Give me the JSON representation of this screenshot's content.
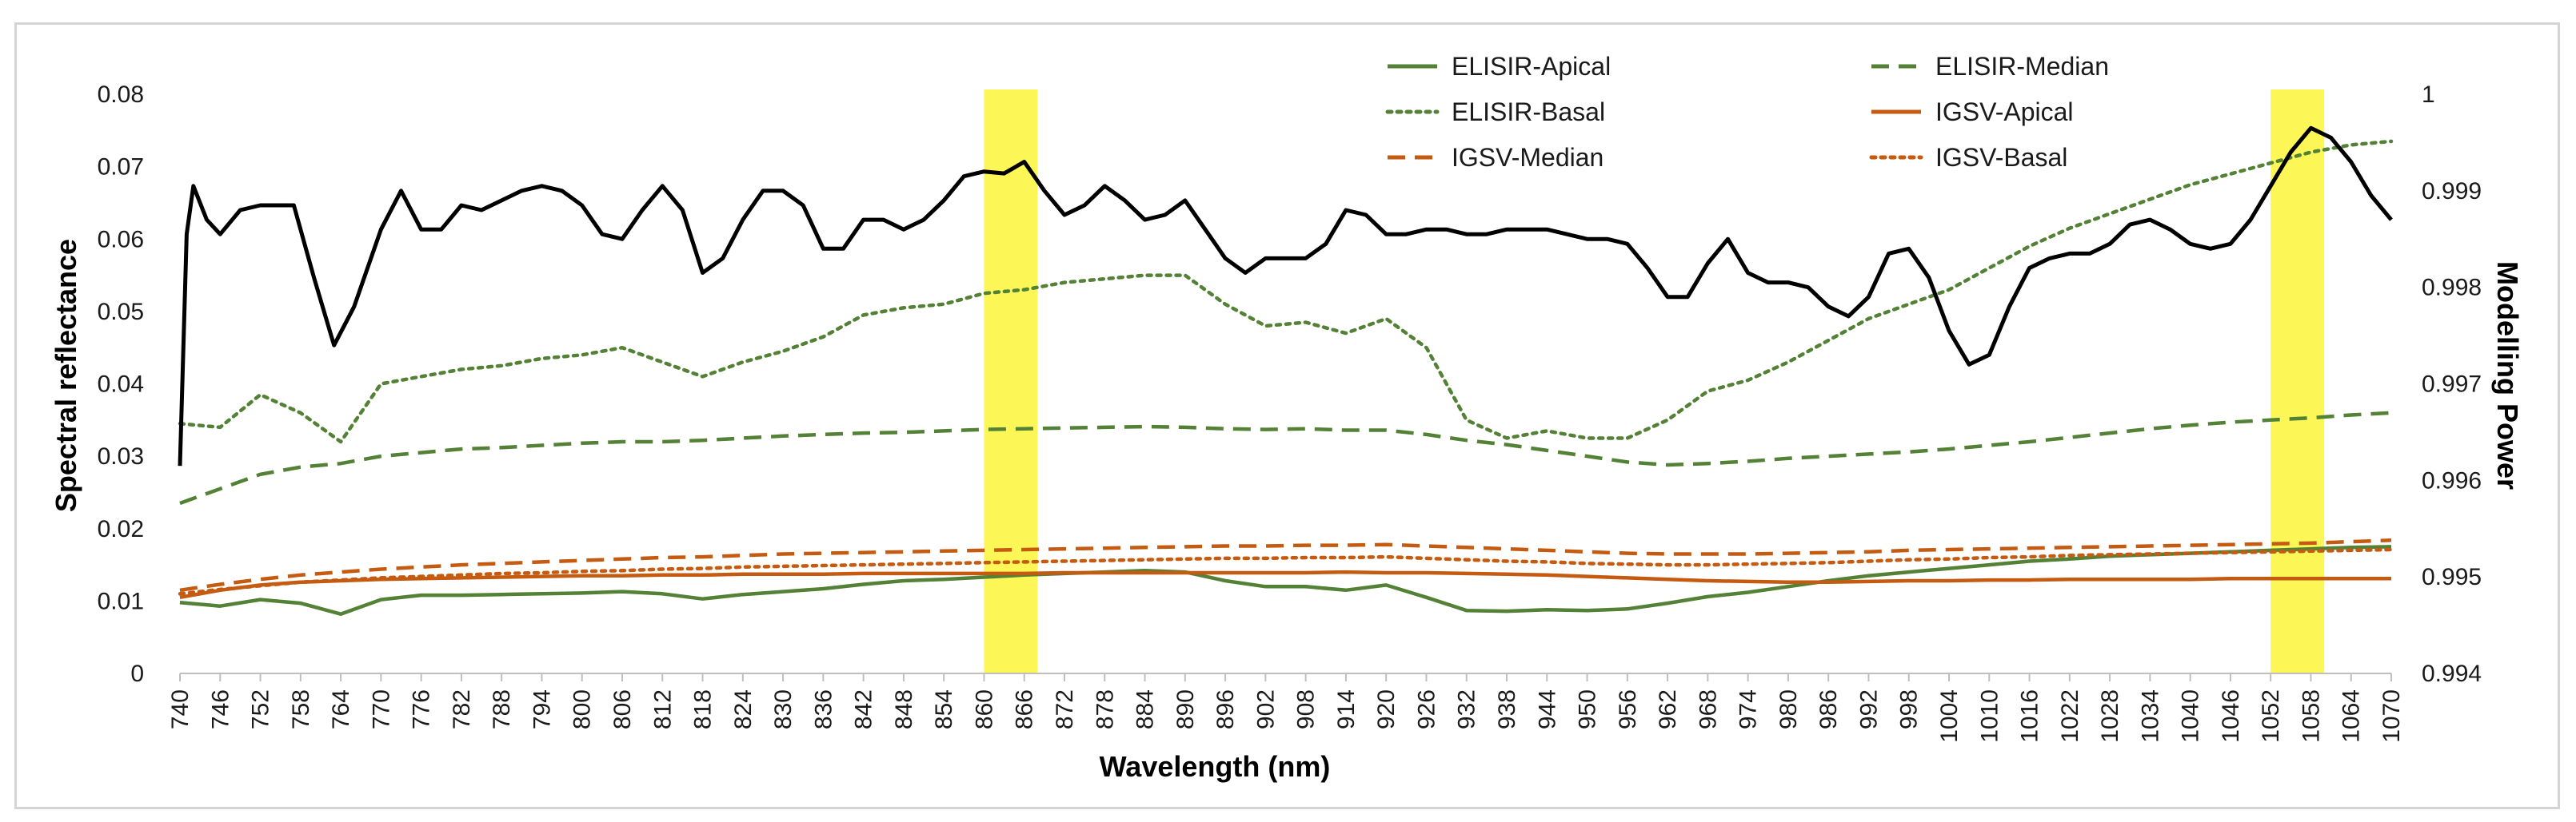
{
  "chart_data": {
    "type": "line",
    "title": "",
    "xlabel": "Wavelength (nm)",
    "ylabel": "Spectral reflectance",
    "y2label": "Modelling Power",
    "xlim": [
      740,
      1070
    ],
    "ylim": [
      0,
      0.08
    ],
    "y2lim": [
      0.994,
      1
    ],
    "x_ticks": [
      "740",
      "746",
      "752",
      "758",
      "764",
      "770",
      "776",
      "782",
      "788",
      "794",
      "800",
      "806",
      "812",
      "818",
      "824",
      "830",
      "836",
      "842",
      "848",
      "854",
      "860",
      "866",
      "872",
      "878",
      "884",
      "890",
      "896",
      "902",
      "908",
      "914",
      "920",
      "926",
      "932",
      "938",
      "944",
      "950",
      "956",
      "962",
      "968",
      "974",
      "980",
      "986",
      "992",
      "998",
      "1004",
      "1010",
      "1016",
      "1022",
      "1028",
      "1034",
      "1040",
      "1046",
      "1052",
      "1058",
      "1064",
      "1070"
    ],
    "y_ticks": [
      "0",
      "0.01",
      "0.02",
      "0.03",
      "0.04",
      "0.05",
      "0.06",
      "0.07",
      "0.08"
    ],
    "y2_ticks": [
      "0.994",
      "0.995",
      "0.996",
      "0.997",
      "0.998",
      "0.999",
      "1"
    ],
    "highlight_bands": [
      [
        860,
        868
      ],
      [
        1052,
        1060
      ]
    ],
    "highlight_color": "#fbf43a",
    "series": [
      {
        "name": "ELISIR-Apical",
        "axis": "left",
        "color": "#538135",
        "style": "solid",
        "x": [
          740,
          746,
          752,
          758,
          764,
          770,
          776,
          782,
          788,
          794,
          800,
          806,
          812,
          818,
          824,
          830,
          836,
          842,
          848,
          854,
          860,
          866,
          872,
          878,
          884,
          890,
          896,
          902,
          908,
          914,
          920,
          926,
          932,
          938,
          944,
          950,
          956,
          962,
          968,
          974,
          980,
          986,
          992,
          998,
          1004,
          1010,
          1016,
          1022,
          1028,
          1034,
          1040,
          1046,
          1052,
          1058,
          1064,
          1070
        ],
        "values": [
          0.0098,
          0.0093,
          0.0102,
          0.0097,
          0.0082,
          0.0102,
          0.0108,
          0.0108,
          0.0109,
          0.011,
          0.0111,
          0.0113,
          0.011,
          0.0103,
          0.0109,
          0.0113,
          0.0117,
          0.0123,
          0.0128,
          0.013,
          0.0133,
          0.0136,
          0.0138,
          0.014,
          0.0142,
          0.014,
          0.0128,
          0.012,
          0.012,
          0.0115,
          0.0122,
          0.0105,
          0.0087,
          0.0086,
          0.0088,
          0.0087,
          0.0089,
          0.0097,
          0.0106,
          0.0112,
          0.012,
          0.0128,
          0.0135,
          0.014,
          0.0145,
          0.015,
          0.0155,
          0.0158,
          0.0162,
          0.0164,
          0.0166,
          0.0168,
          0.017,
          0.0172,
          0.0174,
          0.0175
        ]
      },
      {
        "name": "ELISIR-Median",
        "axis": "left",
        "color": "#538135",
        "style": "dashed",
        "x": [
          740,
          746,
          752,
          758,
          764,
          770,
          776,
          782,
          788,
          794,
          800,
          806,
          812,
          818,
          824,
          830,
          836,
          842,
          848,
          854,
          860,
          866,
          872,
          878,
          884,
          890,
          896,
          902,
          908,
          914,
          920,
          926,
          932,
          938,
          944,
          950,
          956,
          962,
          968,
          974,
          980,
          986,
          992,
          998,
          1004,
          1010,
          1016,
          1022,
          1028,
          1034,
          1040,
          1046,
          1052,
          1058,
          1064,
          1070
        ],
        "values": [
          0.0235,
          0.0255,
          0.0275,
          0.0285,
          0.029,
          0.03,
          0.0305,
          0.031,
          0.0312,
          0.0315,
          0.0318,
          0.032,
          0.032,
          0.0322,
          0.0325,
          0.0328,
          0.033,
          0.0332,
          0.0333,
          0.0335,
          0.0337,
          0.0338,
          0.0339,
          0.034,
          0.0341,
          0.034,
          0.0338,
          0.0337,
          0.0338,
          0.0336,
          0.0336,
          0.033,
          0.0322,
          0.0316,
          0.0308,
          0.03,
          0.0292,
          0.0288,
          0.029,
          0.0293,
          0.0297,
          0.03,
          0.0303,
          0.0306,
          0.031,
          0.0315,
          0.032,
          0.0326,
          0.0332,
          0.0338,
          0.0343,
          0.0347,
          0.035,
          0.0353,
          0.0357,
          0.036
        ]
      },
      {
        "name": "ELISIR-Basal",
        "axis": "left",
        "color": "#538135",
        "style": "dotted",
        "x": [
          740,
          746,
          752,
          758,
          764,
          770,
          776,
          782,
          788,
          794,
          800,
          806,
          812,
          818,
          824,
          830,
          836,
          842,
          848,
          854,
          860,
          866,
          872,
          878,
          884,
          890,
          896,
          902,
          908,
          914,
          920,
          926,
          932,
          938,
          944,
          950,
          956,
          962,
          968,
          974,
          980,
          986,
          992,
          998,
          1004,
          1010,
          1016,
          1022,
          1028,
          1034,
          1040,
          1046,
          1052,
          1058,
          1064,
          1070
        ],
        "values": [
          0.0345,
          0.034,
          0.0385,
          0.036,
          0.032,
          0.04,
          0.041,
          0.042,
          0.0425,
          0.0435,
          0.044,
          0.045,
          0.043,
          0.041,
          0.043,
          0.0445,
          0.0465,
          0.0495,
          0.0505,
          0.051,
          0.0525,
          0.053,
          0.054,
          0.0545,
          0.055,
          0.055,
          0.051,
          0.048,
          0.0485,
          0.047,
          0.049,
          0.045,
          0.035,
          0.0325,
          0.0335,
          0.0325,
          0.0325,
          0.035,
          0.039,
          0.0405,
          0.043,
          0.046,
          0.049,
          0.051,
          0.053,
          0.056,
          0.059,
          0.0615,
          0.0635,
          0.0655,
          0.0675,
          0.069,
          0.0705,
          0.072,
          0.073,
          0.0735
        ]
      },
      {
        "name": "IGSV-Apical",
        "axis": "left",
        "color": "#c55a11",
        "style": "solid",
        "x": [
          740,
          746,
          752,
          758,
          764,
          770,
          776,
          782,
          788,
          794,
          800,
          806,
          812,
          818,
          824,
          830,
          836,
          842,
          848,
          854,
          860,
          866,
          872,
          878,
          884,
          890,
          896,
          902,
          908,
          914,
          920,
          926,
          932,
          938,
          944,
          950,
          956,
          962,
          968,
          974,
          980,
          986,
          992,
          998,
          1004,
          1010,
          1016,
          1022,
          1028,
          1034,
          1040,
          1046,
          1052,
          1058,
          1064,
          1070
        ],
        "values": [
          0.0105,
          0.0115,
          0.0122,
          0.0126,
          0.0128,
          0.013,
          0.0131,
          0.0132,
          0.0133,
          0.0134,
          0.0135,
          0.0135,
          0.0136,
          0.0136,
          0.0137,
          0.0137,
          0.0137,
          0.0138,
          0.0138,
          0.0138,
          0.0138,
          0.0138,
          0.0139,
          0.0139,
          0.0139,
          0.0139,
          0.0139,
          0.0139,
          0.0139,
          0.014,
          0.0139,
          0.0139,
          0.0138,
          0.0137,
          0.0136,
          0.0134,
          0.0132,
          0.013,
          0.0128,
          0.0127,
          0.0126,
          0.0126,
          0.0127,
          0.0128,
          0.0128,
          0.0129,
          0.0129,
          0.013,
          0.013,
          0.013,
          0.013,
          0.0131,
          0.0131,
          0.0131,
          0.0131,
          0.0131
        ]
      },
      {
        "name": "IGSV-Median",
        "axis": "left",
        "color": "#c55a11",
        "style": "dashed",
        "x": [
          740,
          746,
          752,
          758,
          764,
          770,
          776,
          782,
          788,
          794,
          800,
          806,
          812,
          818,
          824,
          830,
          836,
          842,
          848,
          854,
          860,
          866,
          872,
          878,
          884,
          890,
          896,
          902,
          908,
          914,
          920,
          926,
          932,
          938,
          944,
          950,
          956,
          962,
          968,
          974,
          980,
          986,
          992,
          998,
          1004,
          1010,
          1016,
          1022,
          1028,
          1034,
          1040,
          1046,
          1052,
          1058,
          1064,
          1070
        ],
        "values": [
          0.0115,
          0.0123,
          0.013,
          0.0136,
          0.014,
          0.0144,
          0.0147,
          0.015,
          0.0152,
          0.0154,
          0.0156,
          0.0158,
          0.016,
          0.0161,
          0.0163,
          0.0165,
          0.0166,
          0.0167,
          0.0168,
          0.0169,
          0.017,
          0.0171,
          0.0172,
          0.0173,
          0.0174,
          0.0175,
          0.0176,
          0.0176,
          0.0177,
          0.0177,
          0.0178,
          0.0176,
          0.0174,
          0.0172,
          0.017,
          0.0168,
          0.0166,
          0.0165,
          0.0165,
          0.0165,
          0.0166,
          0.0167,
          0.0168,
          0.017,
          0.0171,
          0.0172,
          0.0173,
          0.0174,
          0.0175,
          0.0176,
          0.0177,
          0.0178,
          0.0179,
          0.018,
          0.0182,
          0.0184
        ]
      },
      {
        "name": "IGSV-Basal",
        "axis": "left",
        "color": "#c55a11",
        "style": "dotted",
        "x": [
          740,
          746,
          752,
          758,
          764,
          770,
          776,
          782,
          788,
          794,
          800,
          806,
          812,
          818,
          824,
          830,
          836,
          842,
          848,
          854,
          860,
          866,
          872,
          878,
          884,
          890,
          896,
          902,
          908,
          914,
          920,
          926,
          932,
          938,
          944,
          950,
          956,
          962,
          968,
          974,
          980,
          986,
          992,
          998,
          1004,
          1010,
          1016,
          1022,
          1028,
          1034,
          1040,
          1046,
          1052,
          1058,
          1064,
          1070
        ],
        "values": [
          0.011,
          0.0116,
          0.0121,
          0.0126,
          0.0129,
          0.0132,
          0.0134,
          0.0136,
          0.0138,
          0.0139,
          0.0141,
          0.0142,
          0.0144,
          0.0145,
          0.0147,
          0.0148,
          0.0149,
          0.015,
          0.0151,
          0.0152,
          0.0153,
          0.0154,
          0.0155,
          0.0156,
          0.0157,
          0.0158,
          0.0159,
          0.0159,
          0.016,
          0.016,
          0.0161,
          0.0159,
          0.0157,
          0.0155,
          0.0154,
          0.0152,
          0.0151,
          0.015,
          0.015,
          0.0151,
          0.0152,
          0.0153,
          0.0155,
          0.0157,
          0.0158,
          0.016,
          0.0161,
          0.0163,
          0.0164,
          0.0165,
          0.0166,
          0.0167,
          0.0168,
          0.0169,
          0.017,
          0.0171
        ]
      },
      {
        "name": "Modelling Power",
        "axis": "right",
        "color": "#000000",
        "style": "solid",
        "show_in_legend": false,
        "x": [
          740,
          741,
          742,
          744,
          746,
          749,
          752,
          755,
          757,
          760,
          763,
          766,
          770,
          773,
          776,
          779,
          782,
          785,
          788,
          791,
          794,
          797,
          800,
          803,
          806,
          809,
          812,
          815,
          818,
          821,
          824,
          827,
          830,
          833,
          836,
          839,
          842,
          845,
          848,
          851,
          854,
          857,
          860,
          863,
          866,
          869,
          872,
          875,
          878,
          881,
          884,
          887,
          890,
          893,
          896,
          899,
          902,
          905,
          908,
          911,
          914,
          917,
          920,
          923,
          926,
          929,
          932,
          935,
          938,
          941,
          944,
          947,
          950,
          953,
          956,
          959,
          962,
          965,
          968,
          971,
          974,
          977,
          980,
          983,
          986,
          989,
          992,
          995,
          998,
          1001,
          1004,
          1007,
          1010,
          1013,
          1016,
          1019,
          1022,
          1025,
          1028,
          1031,
          1034,
          1037,
          1040,
          1043,
          1046,
          1049,
          1052,
          1055,
          1058,
          1061,
          1064,
          1067,
          1070
        ],
        "values": [
          0.99615,
          0.99855,
          0.99905,
          0.9987,
          0.99855,
          0.9988,
          0.99885,
          0.99885,
          0.99885,
          0.9981,
          0.9974,
          0.9978,
          0.9986,
          0.999,
          0.9986,
          0.9986,
          0.99885,
          0.9988,
          0.9989,
          0.999,
          0.99905,
          0.999,
          0.99885,
          0.99855,
          0.9985,
          0.9988,
          0.99905,
          0.9988,
          0.99815,
          0.9983,
          0.9987,
          0.999,
          0.999,
          0.99885,
          0.9984,
          0.9984,
          0.9987,
          0.9987,
          0.9986,
          0.9987,
          0.9989,
          0.99915,
          0.9992,
          0.99918,
          0.9993,
          0.999,
          0.99875,
          0.99885,
          0.99905,
          0.9989,
          0.9987,
          0.99875,
          0.9989,
          0.9986,
          0.9983,
          0.99815,
          0.9983,
          0.9983,
          0.9983,
          0.99845,
          0.9988,
          0.99875,
          0.99855,
          0.99855,
          0.9986,
          0.9986,
          0.99855,
          0.99855,
          0.9986,
          0.9986,
          0.9986,
          0.99855,
          0.9985,
          0.9985,
          0.99845,
          0.9982,
          0.9979,
          0.9979,
          0.99825,
          0.9985,
          0.99815,
          0.99805,
          0.99805,
          0.998,
          0.9978,
          0.9977,
          0.9979,
          0.99835,
          0.9984,
          0.9981,
          0.99755,
          0.9972,
          0.9973,
          0.9978,
          0.9982,
          0.9983,
          0.99835,
          0.99835,
          0.99845,
          0.99865,
          0.9987,
          0.9986,
          0.99845,
          0.9984,
          0.99845,
          0.9987,
          0.99905,
          0.9994,
          0.99965,
          0.99955,
          0.9993,
          0.99895,
          0.9987
        ]
      }
    ]
  }
}
